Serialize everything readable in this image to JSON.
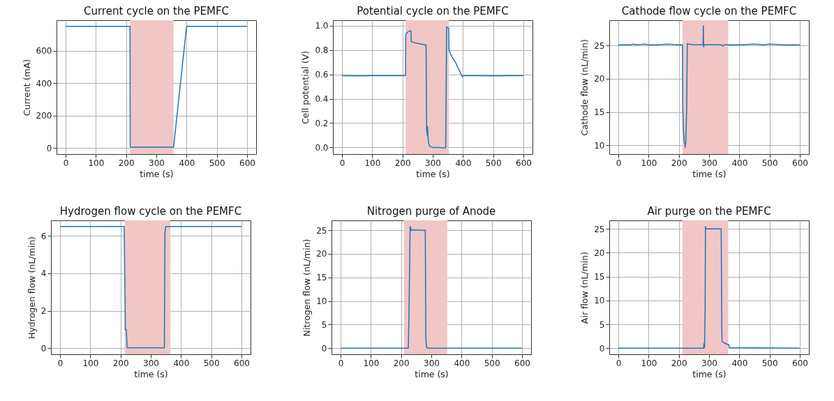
{
  "chart_data": [
    {
      "type": "line",
      "title": "Current cycle on the PEMFC",
      "xlabel": "time (s)",
      "ylabel": "Current (mA)",
      "grid": true,
      "xlim": [
        -30,
        630
      ],
      "xticks": [
        0,
        100,
        200,
        300,
        400,
        500,
        600
      ],
      "ylim": [
        -37.5,
        787.5
      ],
      "yticks": [
        0,
        200,
        400,
        600
      ],
      "series": [
        {
          "color": "#1f77b4",
          "x": [
            0,
            213,
            213.5,
            357,
            400,
            600
          ],
          "values": [
            750,
            750,
            5,
            5,
            750,
            750
          ]
        }
      ],
      "bands": [
        {
          "axis": "x",
          "from": 213,
          "to": 357,
          "color": "#f0c6c6"
        }
      ]
    },
    {
      "type": "line",
      "title": "Potential cycle on the PEMFC",
      "xlabel": "time (s)",
      "ylabel": "Cell potential (V)",
      "grid": true,
      "xlim": [
        -30,
        630
      ],
      "xticks": [
        0,
        100,
        200,
        300,
        400,
        500,
        600
      ],
      "ylim": [
        -0.055,
        1.045
      ],
      "yticks": [
        {
          "value": 0,
          "label": "0.0"
        },
        0.2,
        0.4,
        0.6,
        0.8,
        {
          "value": 1,
          "label": "1.0"
        }
      ],
      "series": [
        {
          "color": "#1f77b4",
          "x": [
            0,
            50,
            100,
            150,
            200,
            210,
            211,
            218,
            228,
            229,
            240,
            260,
            278,
            280,
            282,
            283,
            284,
            286,
            290,
            300,
            320,
            340,
            343,
            346,
            353,
            354,
            360,
            375,
            398,
            402,
            450,
            500,
            550,
            600
          ],
          "values": [
            0.59,
            0.588,
            0.59,
            0.589,
            0.59,
            0.59,
            0.93,
            0.95,
            0.96,
            0.87,
            0.86,
            0.85,
            0.84,
            0.15,
            0.1,
            0.17,
            0.1,
            0.04,
            0.01,
            0.0,
            0.0,
            -0.005,
            0.0,
            0.99,
            0.98,
            0.8,
            0.76,
            0.7,
            0.58,
            0.59,
            0.59,
            0.588,
            0.59,
            0.59
          ]
        }
      ],
      "bands": [
        {
          "axis": "x",
          "from": 210.5,
          "to": 353.5,
          "color": "#f0c6c6"
        }
      ]
    },
    {
      "type": "line",
      "title": "Cathode flow cycle on the PEMFC",
      "xlabel": "time (s)",
      "ylabel": "Cathode flow (nL/min)",
      "grid": true,
      "xlim": [
        -30,
        630
      ],
      "xticks": [
        0,
        100,
        200,
        300,
        400,
        500,
        600
      ],
      "ylim": [
        8.68,
        28.8
      ],
      "yticks": [
        10,
        15,
        20,
        25
      ],
      "series": [
        {
          "color": "#1f77b4",
          "x": [
            0,
            40,
            50,
            60,
            90,
            100,
            130,
            160,
            200,
            212,
            213,
            215,
            218,
            220,
            221,
            223,
            226,
            228,
            232,
            250,
            280,
            281,
            282,
            284,
            300,
            340,
            345,
            350,
            400,
            450,
            480,
            500,
            550,
            600
          ],
          "values": [
            25.1,
            25.1,
            25.2,
            25.1,
            25.2,
            25.1,
            25.1,
            25.2,
            25.1,
            25.1,
            15.5,
            12.5,
            10.5,
            10.3,
            9.7,
            10.5,
            15.5,
            25.3,
            25.2,
            25.1,
            25.1,
            28.0,
            24.8,
            25.1,
            25.1,
            25.1,
            24.9,
            25.1,
            25.1,
            25.2,
            25.1,
            25.2,
            25.1,
            25.1
          ]
        }
      ],
      "bands": [
        {
          "axis": "x",
          "from": 212,
          "to": 363.5,
          "color": "#f0c6c6"
        }
      ]
    },
    {
      "type": "line",
      "title": "Hydrogen flow cycle on the PEMFC",
      "xlabel": "time (s)",
      "ylabel": "Hydrogen flow (nL/min)",
      "grid": true,
      "xlim": [
        -30,
        630
      ],
      "xticks": [
        0,
        100,
        200,
        300,
        400,
        500,
        600
      ],
      "ylim": [
        -0.325,
        6.825
      ],
      "yticks": [
        0,
        2,
        4,
        6
      ],
      "series": [
        {
          "color": "#1f77b4",
          "x": [
            0,
            212,
            214,
            216,
            219,
            222,
            345,
            347,
            350,
            600
          ],
          "values": [
            6.5,
            6.5,
            4.0,
            1.0,
            1.0,
            0.02,
            0.02,
            6.2,
            6.5,
            6.5
          ]
        }
      ],
      "bands": [
        {
          "axis": "x",
          "from": 213.5,
          "to": 364.5,
          "color": "#f0c6c6"
        }
      ]
    },
    {
      "type": "line",
      "title": "Nitrogen purge of Anode",
      "xlabel": "time (s)",
      "ylabel": "Nitrogen flow (nL/min)",
      "grid": true,
      "xlim": [
        -30,
        630
      ],
      "xticks": [
        0,
        100,
        200,
        300,
        400,
        500,
        600
      ],
      "ylim": [
        -1.29,
        27.09
      ],
      "yticks": [
        0,
        5,
        10,
        15,
        20,
        25
      ],
      "series": [
        {
          "color": "#1f77b4",
          "x": [
            0,
            224,
            226,
            230,
            232,
            233,
            240,
            280,
            282,
            284,
            287,
            600
          ],
          "values": [
            0,
            0,
            6.3,
            25.8,
            25.5,
            25.0,
            25.1,
            25.0,
            2.0,
            0.3,
            0,
            0
          ]
        }
      ],
      "bands": [
        {
          "axis": "x",
          "from": 209.5,
          "to": 353,
          "color": "#f0c6c6"
        }
      ]
    },
    {
      "type": "line",
      "title": "Air purge on the PEMFC",
      "xlabel": "time (s)",
      "ylabel": "Air flow (nL/min)",
      "grid": true,
      "xlim": [
        -30,
        630
      ],
      "xticks": [
        0,
        100,
        200,
        300,
        400,
        500,
        600
      ],
      "ylim": [
        -1.275,
        26.78
      ],
      "yticks": [
        0,
        5,
        10,
        15,
        20,
        25
      ],
      "series": [
        {
          "color": "#1f77b4",
          "x": [
            0,
            282,
            283,
            285,
            287,
            288,
            290,
            340,
            342,
            343,
            350,
            360,
            365,
            367,
            600
          ],
          "values": [
            0,
            0,
            1.0,
            0.1,
            8.5,
            25.5,
            25.0,
            25.0,
            5.0,
            1.4,
            1.1,
            0.8,
            0.8,
            0.1,
            0
          ]
        }
      ],
      "bands": [
        {
          "axis": "x",
          "from": 212,
          "to": 363.5,
          "color": "#f0c6c6"
        }
      ]
    }
  ]
}
